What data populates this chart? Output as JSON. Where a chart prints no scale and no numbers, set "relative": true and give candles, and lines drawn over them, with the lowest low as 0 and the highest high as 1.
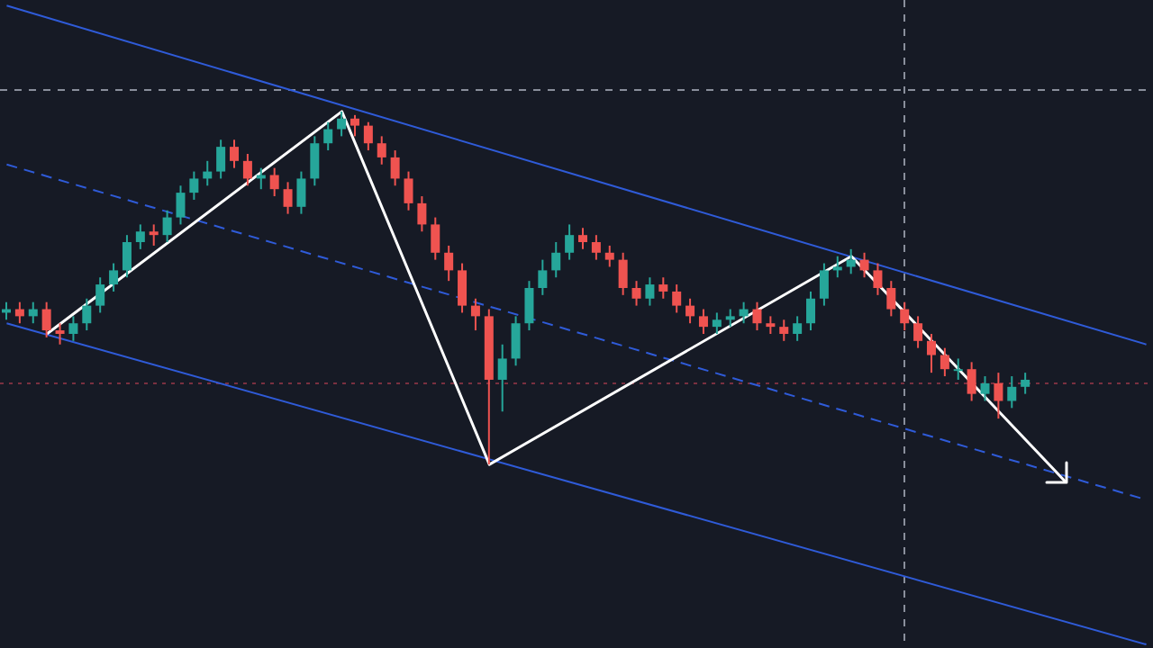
{
  "chart_data": {
    "type": "candlestick",
    "relative": true,
    "categories": [
      null,
      null,
      null,
      null,
      null,
      null,
      null,
      null,
      null,
      null,
      null,
      null,
      null,
      null,
      null,
      null,
      null,
      null,
      null,
      null,
      null,
      null,
      null,
      null,
      null,
      null,
      null,
      null,
      null,
      null,
      null,
      null,
      null,
      null,
      null,
      null,
      null,
      null,
      null,
      null,
      null,
      null,
      null,
      null,
      null,
      null,
      null,
      null,
      null,
      null,
      null,
      null,
      null,
      null,
      null,
      null,
      null,
      null,
      null,
      null,
      null,
      null,
      null,
      null,
      null,
      null,
      null,
      null,
      null,
      null,
      null,
      null,
      null,
      null,
      null,
      null,
      null,
      null,
      null,
      null,
      null,
      null,
      null,
      null,
      null,
      null
    ],
    "ohlc": [
      [
        0.43,
        0.46,
        0.41,
        0.44
      ],
      [
        0.44,
        0.46,
        0.4,
        0.42
      ],
      [
        0.42,
        0.46,
        0.4,
        0.44
      ],
      [
        0.44,
        0.46,
        0.36,
        0.38
      ],
      [
        0.38,
        0.4,
        0.34,
        0.37
      ],
      [
        0.37,
        0.42,
        0.35,
        0.4
      ],
      [
        0.4,
        0.47,
        0.38,
        0.45
      ],
      [
        0.45,
        0.53,
        0.43,
        0.51
      ],
      [
        0.51,
        0.57,
        0.49,
        0.55
      ],
      [
        0.55,
        0.65,
        0.53,
        0.63
      ],
      [
        0.63,
        0.68,
        0.61,
        0.66
      ],
      [
        0.66,
        0.68,
        0.62,
        0.65
      ],
      [
        0.65,
        0.72,
        0.63,
        0.7
      ],
      [
        0.7,
        0.79,
        0.68,
        0.77
      ],
      [
        0.77,
        0.83,
        0.75,
        0.81
      ],
      [
        0.81,
        0.86,
        0.79,
        0.83
      ],
      [
        0.83,
        0.92,
        0.81,
        0.9
      ],
      [
        0.9,
        0.92,
        0.84,
        0.86
      ],
      [
        0.86,
        0.88,
        0.79,
        0.81
      ],
      [
        0.81,
        0.84,
        0.78,
        0.82
      ],
      [
        0.82,
        0.84,
        0.76,
        0.78
      ],
      [
        0.78,
        0.8,
        0.71,
        0.73
      ],
      [
        0.73,
        0.83,
        0.71,
        0.81
      ],
      [
        0.81,
        0.93,
        0.79,
        0.91
      ],
      [
        0.91,
        0.97,
        0.89,
        0.95
      ],
      [
        0.95,
        1,
        0.93,
        0.98
      ],
      [
        0.98,
        0.99,
        0.93,
        0.96
      ],
      [
        0.96,
        0.97,
        0.89,
        0.91
      ],
      [
        0.91,
        0.93,
        0.85,
        0.87
      ],
      [
        0.87,
        0.89,
        0.79,
        0.81
      ],
      [
        0.81,
        0.83,
        0.72,
        0.74
      ],
      [
        0.74,
        0.76,
        0.66,
        0.68
      ],
      [
        0.68,
        0.7,
        0.58,
        0.6
      ],
      [
        0.6,
        0.62,
        0.52,
        0.55
      ],
      [
        0.55,
        0.57,
        0.43,
        0.45
      ],
      [
        0.45,
        0.47,
        0.38,
        0.42
      ],
      [
        0.42,
        0.44,
        0,
        0.24
      ],
      [
        0.24,
        0.34,
        0.15,
        0.3
      ],
      [
        0.3,
        0.42,
        0.28,
        0.4
      ],
      [
        0.4,
        0.52,
        0.38,
        0.5
      ],
      [
        0.5,
        0.58,
        0.48,
        0.55
      ],
      [
        0.55,
        0.63,
        0.53,
        0.6
      ],
      [
        0.6,
        0.68,
        0.58,
        0.65
      ],
      [
        0.65,
        0.67,
        0.61,
        0.63
      ],
      [
        0.63,
        0.65,
        0.58,
        0.6
      ],
      [
        0.6,
        0.62,
        0.56,
        0.58
      ],
      [
        0.58,
        0.6,
        0.48,
        0.5
      ],
      [
        0.5,
        0.52,
        0.45,
        0.47
      ],
      [
        0.47,
        0.53,
        0.45,
        0.51
      ],
      [
        0.51,
        0.53,
        0.47,
        0.49
      ],
      [
        0.49,
        0.51,
        0.43,
        0.45
      ],
      [
        0.45,
        0.47,
        0.4,
        0.42
      ],
      [
        0.42,
        0.44,
        0.37,
        0.39
      ],
      [
        0.39,
        0.43,
        0.37,
        0.41
      ],
      [
        0.41,
        0.44,
        0.39,
        0.42
      ],
      [
        0.42,
        0.46,
        0.4,
        0.44
      ],
      [
        0.44,
        0.46,
        0.38,
        0.4
      ],
      [
        0.4,
        0.42,
        0.37,
        0.39
      ],
      [
        0.39,
        0.41,
        0.35,
        0.37
      ],
      [
        0.37,
        0.42,
        0.35,
        0.4
      ],
      [
        0.4,
        0.49,
        0.38,
        0.47
      ],
      [
        0.47,
        0.57,
        0.45,
        0.55
      ],
      [
        0.55,
        0.59,
        0.53,
        0.56
      ],
      [
        0.56,
        0.61,
        0.54,
        0.58
      ],
      [
        0.58,
        0.6,
        0.53,
        0.55
      ],
      [
        0.55,
        0.57,
        0.48,
        0.5
      ],
      [
        0.5,
        0.52,
        0.42,
        0.44
      ],
      [
        0.44,
        0.46,
        0.38,
        0.4
      ],
      [
        0.4,
        0.42,
        0.33,
        0.35
      ],
      [
        0.35,
        0.37,
        0.26,
        0.31
      ],
      [
        0.31,
        0.33,
        0.25,
        0.27
      ],
      [
        0.27,
        0.3,
        0.24,
        0.27
      ],
      [
        0.27,
        0.29,
        0.18,
        0.2
      ],
      [
        0.2,
        0.25,
        0.18,
        0.23
      ],
      [
        0.23,
        0.26,
        0.13,
        0.18
      ],
      [
        0.18,
        0.25,
        0.16,
        0.22
      ],
      [
        0.22,
        0.26,
        0.2,
        0.24
      ],
      null,
      null,
      null,
      null,
      null,
      null,
      null,
      null,
      null
    ],
    "colors": [
      "#26a69a",
      "#ef5350",
      "#26a69a",
      "#ef5350",
      "#ef5350",
      "#26a69a",
      "#26a69a",
      "#26a69a",
      "#26a69a",
      "#26a69a",
      "#26a69a",
      "#ef5350",
      "#26a69a",
      "#26a69a",
      "#26a69a",
      "#26a69a",
      "#26a69a",
      "#ef5350",
      "#ef5350",
      "#26a69a",
      "#ef5350",
      "#ef5350",
      "#26a69a",
      "#26a69a",
      "#26a69a",
      "#26a69a",
      "#ef5350",
      "#ef5350",
      "#ef5350",
      "#ef5350",
      "#ef5350",
      "#ef5350",
      "#ef5350",
      "#ef5350",
      "#ef5350",
      "#ef5350",
      "#ef5350",
      "#26a69a",
      "#26a69a",
      "#26a69a",
      "#26a69a",
      "#26a69a",
      "#26a69a",
      "#ef5350",
      "#ef5350",
      "#ef5350",
      "#ef5350",
      "#ef5350",
      "#26a69a",
      "#ef5350",
      "#ef5350",
      "#ef5350",
      "#ef5350",
      "#26a69a",
      "#26a69a",
      "#26a69a",
      "#ef5350",
      "#ef5350",
      "#ef5350",
      "#26a69a",
      "#26a69a",
      "#26a69a",
      "#26a69a",
      "#26a69a",
      "#ef5350",
      "#ef5350",
      "#ef5350",
      "#ef5350",
      "#ef5350",
      "#ef5350",
      "#ef5350",
      "#26a69a",
      "#ef5350",
      "#26a69a",
      "#ef5350",
      "#26a69a",
      "#26a69a",
      null,
      null,
      null,
      null,
      null,
      null,
      null,
      null,
      null
    ],
    "series": [
      {
        "type": "line",
        "color": "#2f5bd8",
        "values": [
          1.3,
          null,
          null,
          null,
          null,
          null,
          null,
          null,
          null,
          null,
          null,
          null,
          null,
          null,
          null,
          null,
          null,
          null,
          null,
          null,
          null,
          null,
          null,
          null,
          null,
          null,
          null,
          null,
          null,
          null,
          null,
          null,
          null,
          null,
          null,
          null,
          null,
          null,
          null,
          null,
          null,
          null,
          null,
          null,
          null,
          null,
          null,
          null,
          null,
          null,
          null,
          null,
          null,
          null,
          null,
          null,
          null,
          null,
          null,
          null,
          null,
          null,
          null,
          null,
          null,
          null,
          null,
          null,
          null,
          null,
          null,
          null,
          null,
          null,
          null,
          null,
          null,
          null,
          null,
          null,
          null,
          null,
          null,
          null,
          null,
          0.34
        ]
      },
      {
        "type": "line",
        "color": "#2f5bd8",
        "line_style": "dashed",
        "values": [
          0.85,
          null,
          null,
          null,
          null,
          null,
          null,
          null,
          null,
          null,
          null,
          null,
          null,
          null,
          null,
          null,
          null,
          null,
          null,
          null,
          null,
          null,
          null,
          null,
          null,
          null,
          null,
          null,
          null,
          null,
          null,
          null,
          null,
          null,
          null,
          null,
          null,
          null,
          null,
          null,
          null,
          null,
          null,
          null,
          null,
          null,
          null,
          null,
          null,
          null,
          null,
          null,
          null,
          null,
          null,
          null,
          null,
          null,
          null,
          null,
          null,
          null,
          null,
          null,
          null,
          null,
          null,
          null,
          null,
          null,
          null,
          null,
          null,
          null,
          null,
          null,
          null,
          null,
          null,
          null,
          null,
          null,
          null,
          null,
          null,
          -0.1
        ]
      },
      {
        "type": "line",
        "color": "#2f5bd8",
        "values": [
          0.4,
          null,
          null,
          null,
          null,
          null,
          null,
          null,
          null,
          null,
          null,
          null,
          null,
          null,
          null,
          null,
          null,
          null,
          null,
          null,
          null,
          null,
          null,
          null,
          null,
          null,
          null,
          null,
          null,
          null,
          null,
          null,
          null,
          null,
          null,
          null,
          null,
          null,
          null,
          null,
          null,
          null,
          null,
          null,
          null,
          null,
          null,
          null,
          null,
          null,
          null,
          null,
          null,
          null,
          null,
          null,
          null,
          null,
          null,
          null,
          null,
          null,
          null,
          null,
          null,
          null,
          null,
          null,
          null,
          null,
          null,
          null,
          null,
          null,
          null,
          null,
          null,
          null,
          null,
          null,
          null,
          null,
          null,
          null,
          null,
          -0.51
        ]
      },
      {
        "type": "line",
        "color": "#ffffff",
        "values": [
          null,
          null,
          null,
          0.37,
          null,
          null,
          null,
          null,
          null,
          null,
          null,
          null,
          null,
          null,
          null,
          null,
          null,
          null,
          null,
          null,
          null,
          null,
          null,
          null,
          null,
          1,
          null,
          null,
          null,
          null,
          null,
          null,
          null,
          null,
          null,
          null,
          0,
          null,
          null,
          null,
          null,
          null,
          null,
          null,
          null,
          null,
          null,
          null,
          null,
          null,
          null,
          null,
          null,
          null,
          null,
          null,
          null,
          null,
          null,
          null,
          null,
          null,
          null,
          0.59,
          null,
          null,
          null,
          null,
          null,
          null,
          null,
          null,
          null,
          null,
          null,
          null,
          null,
          null,
          null,
          -0.05,
          null,
          null,
          null,
          null,
          null,
          null
        ]
      }
    ],
    "marker": "none",
    "ref_lines": [
      {
        "axis": "y",
        "value": 0.23,
        "color": "#7a3040",
        "line_style": "dotted"
      }
    ]
  }
}
